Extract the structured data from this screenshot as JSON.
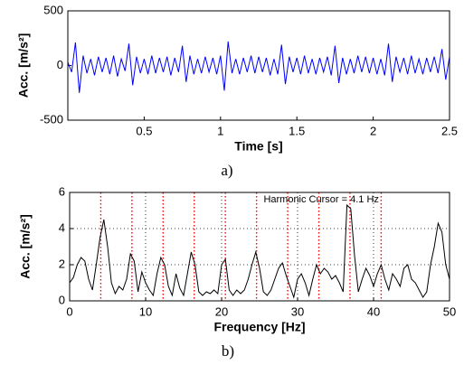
{
  "chart_data": [
    {
      "type": "line",
      "color": "#0000ff",
      "xlabel": "Time [s]",
      "ylabel": "Acc. [m/s²]",
      "caption": "a)",
      "xlim": [
        0,
        2.5
      ],
      "ylim": [
        -500,
        500
      ],
      "xticks": [
        0.5,
        1,
        1.5,
        2,
        2.5
      ],
      "yticks": [
        -500,
        0,
        500
      ],
      "grid": false,
      "x": [
        0,
        0.025,
        0.05,
        0.075,
        0.1,
        0.125,
        0.15,
        0.175,
        0.2,
        0.225,
        0.25,
        0.275,
        0.3,
        0.325,
        0.35,
        0.375,
        0.4,
        0.425,
        0.45,
        0.475,
        0.5,
        0.525,
        0.55,
        0.575,
        0.6,
        0.625,
        0.65,
        0.675,
        0.7,
        0.725,
        0.75,
        0.775,
        0.8,
        0.825,
        0.85,
        0.875,
        0.9,
        0.925,
        0.95,
        0.975,
        1,
        1.025,
        1.05,
        1.075,
        1.1,
        1.125,
        1.15,
        1.175,
        1.2,
        1.225,
        1.25,
        1.275,
        1.3,
        1.325,
        1.35,
        1.375,
        1.4,
        1.425,
        1.45,
        1.475,
        1.5,
        1.525,
        1.55,
        1.575,
        1.6,
        1.625,
        1.65,
        1.675,
        1.7,
        1.725,
        1.75,
        1.775,
        1.8,
        1.825,
        1.85,
        1.875,
        1.9,
        1.925,
        1.95,
        1.975,
        2,
        2.025,
        2.05,
        2.075,
        2.1,
        2.125,
        2.15,
        2.175,
        2.2,
        2.225,
        2.25,
        2.275,
        2.3,
        2.325,
        2.35,
        2.375,
        2.4,
        2.425,
        2.45,
        2.475,
        2.5
      ],
      "values": [
        30,
        -60,
        210,
        -250,
        90,
        -70,
        60,
        -90,
        80,
        -60,
        70,
        -80,
        90,
        -100,
        60,
        -50,
        200,
        -180,
        80,
        -70,
        60,
        -80,
        90,
        -70,
        70,
        -60,
        80,
        -90,
        70,
        -60,
        180,
        -150,
        90,
        -80,
        60,
        -70,
        80,
        -60,
        70,
        -80,
        90,
        -230,
        220,
        -70,
        60,
        -80,
        70,
        -60,
        90,
        -70,
        80,
        -60,
        70,
        -90,
        60,
        -80,
        190,
        -170,
        80,
        -60,
        70,
        -80,
        90,
        -70,
        60,
        -80,
        70,
        -60,
        80,
        -90,
        180,
        -160,
        70,
        -80,
        60,
        -70,
        90,
        -60,
        80,
        -70,
        70,
        -80,
        60,
        -90,
        200,
        -150,
        80,
        -60,
        70,
        -80,
        90,
        -70,
        60,
        -80,
        70,
        -60,
        80,
        -70,
        150,
        -130,
        80
      ]
    },
    {
      "type": "line",
      "color": "#000000",
      "xlabel": "Frequency [Hz]",
      "ylabel": "Acc. [m/s²]",
      "caption": "b)",
      "annotation": "Harmonic Cursor = 4.1 Hz",
      "harmonics": [
        4.1,
        8.2,
        12.3,
        16.4,
        20.5,
        24.6,
        28.7,
        32.8,
        36.9,
        41.0
      ],
      "harmonic_color": "#ff0000",
      "xlim": [
        0,
        50
      ],
      "ylim": [
        0,
        6
      ],
      "xticks": [
        0,
        10,
        20,
        30,
        40,
        50
      ],
      "yticks": [
        0,
        2,
        4,
        6
      ],
      "grid": true,
      "x": [
        0,
        0.5,
        1,
        1.5,
        2,
        2.5,
        3,
        3.5,
        4,
        4.5,
        5,
        5.5,
        6,
        6.5,
        7,
        7.5,
        8,
        8.5,
        9,
        9.5,
        10,
        10.5,
        11,
        11.5,
        12,
        12.5,
        13,
        13.5,
        14,
        14.5,
        15,
        15.5,
        16,
        16.5,
        17,
        17.5,
        18,
        18.5,
        19,
        19.5,
        20,
        20.5,
        21,
        21.5,
        22,
        22.5,
        23,
        23.5,
        24,
        24.5,
        25,
        25.5,
        26,
        26.5,
        27,
        27.5,
        28,
        28.5,
        29,
        29.5,
        30,
        30.5,
        31,
        31.5,
        32,
        32.5,
        33,
        33.5,
        34,
        34.5,
        35,
        35.5,
        36,
        36.5,
        37,
        37.5,
        38,
        38.5,
        39,
        39.5,
        40,
        40.5,
        41,
        41.5,
        42,
        42.5,
        43,
        43.5,
        44,
        44.5,
        45,
        45.5,
        46,
        46.5,
        47,
        47.5,
        48,
        48.5,
        49,
        49.5,
        50
      ],
      "values": [
        1.0,
        1.3,
        2.0,
        2.4,
        2.2,
        1.2,
        0.6,
        2.0,
        3.5,
        4.5,
        3.0,
        1.0,
        0.4,
        0.8,
        0.6,
        1.2,
        2.6,
        2.2,
        0.5,
        1.6,
        1.0,
        0.6,
        0.3,
        1.5,
        2.4,
        2.0,
        0.8,
        0.3,
        1.5,
        0.7,
        0.3,
        1.5,
        2.7,
        2.0,
        0.5,
        0.3,
        0.5,
        0.4,
        0.6,
        0.4,
        2.0,
        2.3,
        0.6,
        0.3,
        0.6,
        0.4,
        0.6,
        1.2,
        2.0,
        2.7,
        1.8,
        0.5,
        0.3,
        0.6,
        1.2,
        1.8,
        2.1,
        1.4,
        0.8,
        0.2,
        1.2,
        1.5,
        1.0,
        0.3,
        1.2,
        2.0,
        1.5,
        1.8,
        1.6,
        1.2,
        1.4,
        1.0,
        0.5,
        5.3,
        5.1,
        2.5,
        0.5,
        1.2,
        1.8,
        1.4,
        0.8,
        1.5,
        2.0,
        1.2,
        0.6,
        1.5,
        1.2,
        0.8,
        1.8,
        2.0,
        1.2,
        1.0,
        0.6,
        0.2,
        0.5,
        2.0,
        3.0,
        4.3,
        3.8,
        2.0,
        1.2
      ]
    }
  ]
}
